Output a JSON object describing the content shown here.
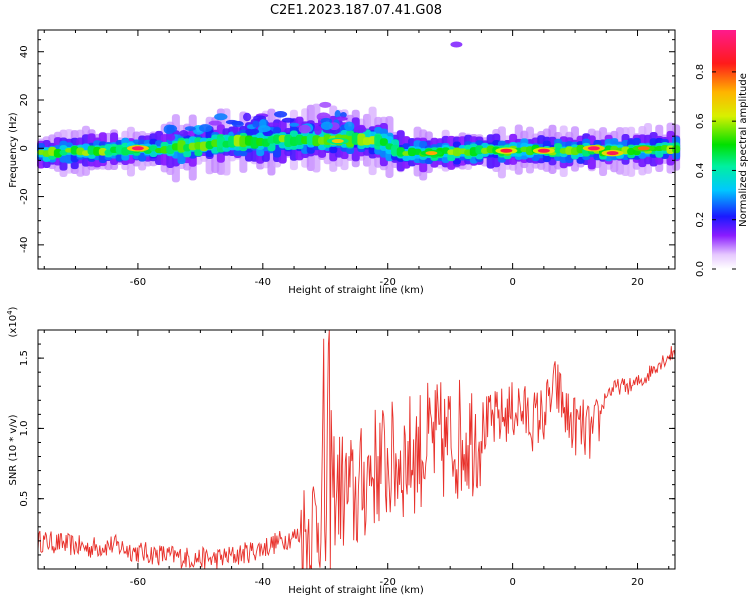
{
  "title": "C2E1.2023.187.07.41.G08",
  "chart_data": [
    {
      "type": "heatmap",
      "xlabel": "Height of straight line (km)",
      "ylabel": "Frequency (Hz)",
      "xlim": [
        -76,
        26
      ],
      "ylim": [
        -50,
        49
      ],
      "xticks": [
        -60,
        -40,
        -20,
        0,
        20
      ],
      "xtick_labels": [
        "-60",
        "-40",
        "-20",
        "0",
        "20"
      ],
      "yticks": [
        40,
        20,
        0,
        -20,
        -40
      ],
      "ytick_labels": [
        "40",
        "20",
        "0",
        "-20",
        "-40"
      ],
      "colorbar": {
        "label": "Normalized spectral amplitude",
        "range": [
          0,
          0.97
        ],
        "ticks": [
          0.0,
          0.2,
          0.4,
          0.6,
          0.8
        ],
        "tick_labels": [
          "0.0",
          "0.2",
          "0.4",
          "0.6",
          "0.8"
        ],
        "colormap": "rainbow (white-violet-blue-cyan-green-yellow-red-magenta)"
      },
      "band_center_hz": [
        {
          "x": -76,
          "f": -2
        },
        {
          "x": -65,
          "f": -1
        },
        {
          "x": -55,
          "f": 0
        },
        {
          "x": -48,
          "f": 2
        },
        {
          "x": -40,
          "f": 3
        },
        {
          "x": -30,
          "f": 4
        },
        {
          "x": -22,
          "f": 3
        },
        {
          "x": -18,
          "f": -2
        },
        {
          "x": -14,
          "f": -2
        },
        {
          "x": -5,
          "f": -1
        },
        {
          "x": 5,
          "f": -1
        },
        {
          "x": 15,
          "f": -1
        },
        {
          "x": 25,
          "f": 0
        }
      ],
      "peaks": [
        {
          "x": -60,
          "f": 0,
          "amplitude": 0.95
        },
        {
          "x": -28,
          "f": 3,
          "amplitude": 0.7
        },
        {
          "x": -13,
          "f": -2,
          "amplitude": 0.75
        },
        {
          "x": -1,
          "f": -1,
          "amplitude": 0.9
        },
        {
          "x": 5,
          "f": -1,
          "amplitude": 0.92
        },
        {
          "x": 13,
          "f": 0,
          "amplitude": 0.95
        },
        {
          "x": 16,
          "f": -2,
          "amplitude": 0.93
        },
        {
          "x": 21,
          "f": 0,
          "amplitude": 0.8
        }
      ],
      "faint_features": [
        {
          "x": -9,
          "f": 43,
          "amplitude": 0.15
        },
        {
          "x": -44,
          "f": 10,
          "amplitude": 0.25
        },
        {
          "x": -30,
          "f": 18,
          "amplitude": 0.12
        }
      ]
    },
    {
      "type": "line",
      "xlabel": "Height of straight line (km)",
      "ylabel": "SNR (10 * v/v)",
      "y_multiplier": "(x10",
      "y_multiplier_exp": "4",
      "xlim": [
        -76,
        26
      ],
      "ylim": [
        0,
        1.7
      ],
      "xticks": [
        -60,
        -40,
        -20,
        0,
        20
      ],
      "xtick_labels": [
        "-60",
        "-40",
        "-20",
        "0",
        "20"
      ],
      "yticks": [
        0.5,
        1.0,
        1.5
      ],
      "ytick_labels": [
        "0.5",
        "1.0",
        "1.5"
      ],
      "color": "#e8312b",
      "series": [
        {
          "x": [
            -76,
            -72,
            -68,
            -64,
            -60,
            -56,
            -52,
            -48,
            -44,
            -40,
            -36,
            -33,
            -31,
            -29,
            -27,
            -25,
            -23,
            -21,
            -19,
            -17,
            -15,
            -13,
            -11,
            -9,
            -7,
            -5,
            -3,
            -1,
            1,
            3,
            5,
            7,
            9,
            11,
            13,
            15,
            17,
            19,
            21,
            23,
            26
          ],
          "values": [
            0.2,
            0.18,
            0.15,
            0.17,
            0.12,
            0.1,
            0.08,
            0.07,
            0.1,
            0.15,
            0.22,
            0.25,
            0.4,
            0.6,
            0.55,
            0.5,
            0.7,
            0.75,
            0.75,
            0.8,
            0.85,
            0.9,
            0.9,
            0.92,
            0.95,
            1.0,
            1.05,
            1.1,
            1.15,
            1.05,
            1.1,
            1.3,
            1.05,
            1.0,
            0.95,
            1.25,
            1.3,
            1.3,
            1.35,
            1.45,
            1.55
          ]
        }
      ]
    }
  ]
}
